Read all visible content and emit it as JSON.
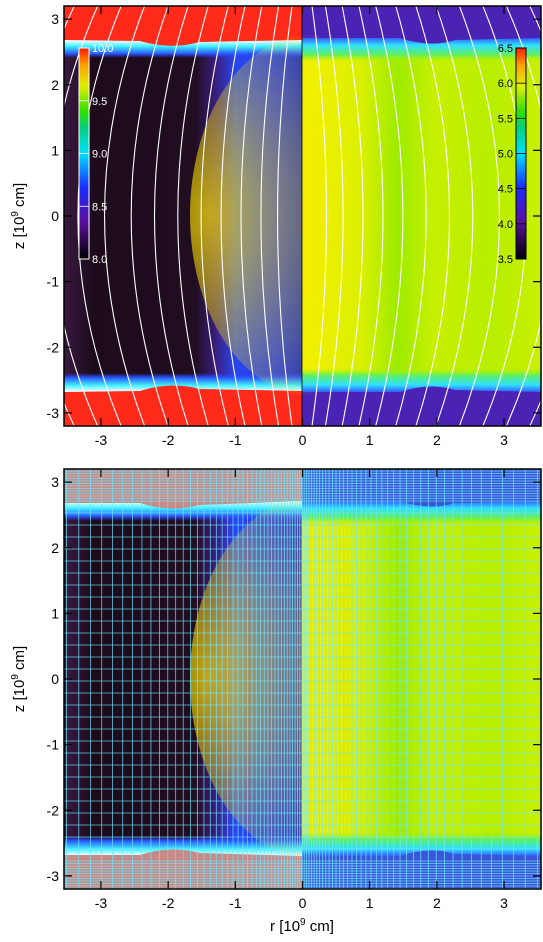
{
  "r_ticks": [
    "-3",
    "-2",
    "-1",
    "0",
    "1",
    "2",
    "3"
  ],
  "z_ticks": [
    "3",
    "2",
    "1",
    "0",
    "-1",
    "-2",
    "-3"
  ],
  "top_panel": {
    "ylabel_prefix": "z [10",
    "ylabel_exp": "9",
    "ylabel_suffix": " cm]",
    "left_colorbar_ticks": [
      "10.0",
      "9.5",
      "9.0",
      "8.5",
      "8.0"
    ],
    "right_colorbar_ticks": [
      "6.5",
      "6.0",
      "5.5",
      "5.0",
      "4.5",
      "4.0",
      "3.5"
    ]
  },
  "bottom_panel": {
    "ylabel_prefix": "z [10",
    "ylabel_exp": "9",
    "ylabel_suffix": " cm]",
    "xlabel_prefix": "r [10",
    "xlabel_exp": "9",
    "xlabel_suffix": " cm]"
  },
  "colors": {
    "corona": "#ff2a1a",
    "dark_core": "#200c1c",
    "blue_band": "#2a3cff",
    "cyan_layer": "#33e8ff",
    "yellow": "#e6f500",
    "green_yellow": "#a8f000",
    "purple": "#4a22b4",
    "grid": "#70e6ff",
    "field_lines": "#ffffff"
  }
}
